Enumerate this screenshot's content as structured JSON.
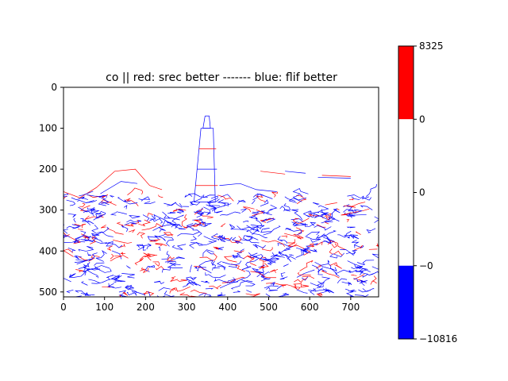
{
  "chart_data": {
    "type": "heatmap",
    "title": "co || red: srec better ------- blue: flif better",
    "xlim": [
      0,
      768
    ],
    "ylim": [
      512,
      0
    ],
    "x_ticks": [
      0,
      100,
      200,
      300,
      400,
      500,
      600,
      700
    ],
    "y_ticks": [
      0,
      100,
      200,
      300,
      400,
      500
    ],
    "grid": false,
    "colorbar": {
      "placement": "right",
      "segments": [
        {
          "color": "#ff0000",
          "from": "0",
          "to": "8325"
        },
        {
          "color": "#ffffff",
          "from": "0",
          "to": "0"
        },
        {
          "color": "#ffffff",
          "from": "−0",
          "to": "0"
        },
        {
          "color": "#0000ff",
          "from": "−10816",
          "to": "−0"
        }
      ],
      "tick_labels": [
        "8325",
        "0",
        "0",
        "−0",
        "−10816"
      ]
    },
    "colors": {
      "red": "#ff0000",
      "blue": "#0000ff"
    }
  }
}
